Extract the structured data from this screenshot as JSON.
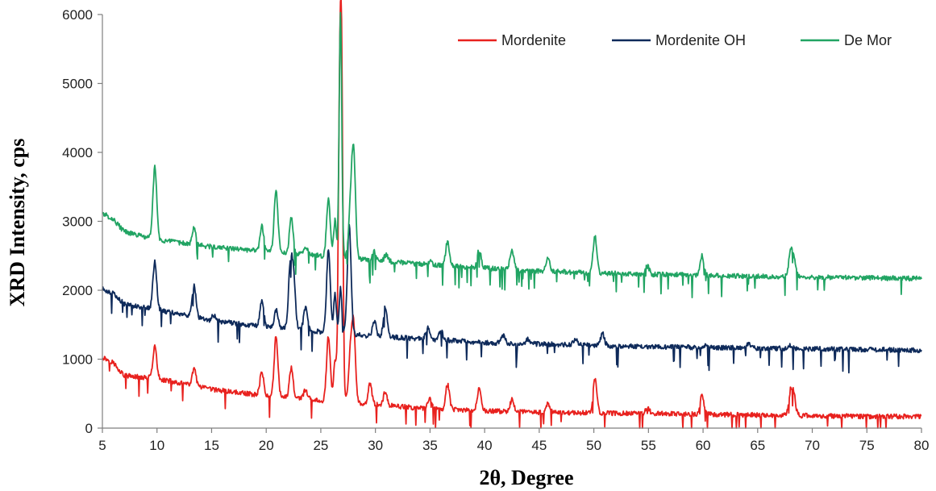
{
  "chart_data": {
    "type": "line",
    "xlabel": "2θ, Degree",
    "ylabel": "XRD Intensity, cps",
    "xlim": [
      5,
      80
    ],
    "ylim": [
      0,
      6000
    ],
    "xticks": [
      5,
      10,
      15,
      20,
      25,
      30,
      35,
      40,
      45,
      50,
      55,
      60,
      65,
      70,
      75,
      80
    ],
    "yticks": [
      0,
      1000,
      2000,
      3000,
      4000,
      5000,
      6000
    ],
    "grid": false,
    "legend_position": "top-right",
    "series": [
      {
        "name": "Mordenite",
        "color": "#e8211e",
        "baseline": [
          [
            5,
            1030
          ],
          [
            6,
            950
          ],
          [
            7,
            760
          ],
          [
            10,
            720
          ],
          [
            15,
            560
          ],
          [
            20,
            470
          ],
          [
            25,
            400
          ],
          [
            30,
            340
          ],
          [
            35,
            280
          ],
          [
            40,
            250
          ],
          [
            45,
            230
          ],
          [
            50,
            220
          ],
          [
            55,
            210
          ],
          [
            60,
            200
          ],
          [
            65,
            190
          ],
          [
            70,
            180
          ],
          [
            75,
            170
          ],
          [
            80,
            170
          ]
        ],
        "peaks": [
          [
            9.8,
            1180
          ],
          [
            13.4,
            860
          ],
          [
            15.2,
            560
          ],
          [
            19.6,
            820
          ],
          [
            20.9,
            1330
          ],
          [
            22.3,
            870
          ],
          [
            23.6,
            560
          ],
          [
            25.7,
            1330
          ],
          [
            26.3,
            1000
          ],
          [
            26.7,
            3900
          ],
          [
            26.9,
            5050
          ],
          [
            27.7,
            1000
          ],
          [
            28.0,
            1440
          ],
          [
            29.5,
            650
          ],
          [
            30.9,
            520
          ],
          [
            35.0,
            440
          ],
          [
            36.6,
            640
          ],
          [
            39.5,
            580
          ],
          [
            42.5,
            410
          ],
          [
            45.8,
            350
          ],
          [
            50.1,
            720
          ],
          [
            54.9,
            310
          ],
          [
            59.9,
            470
          ],
          [
            68.0,
            500
          ],
          [
            68.3,
            470
          ]
        ]
      },
      {
        "name": "Mordenite OH",
        "color": "#0e2a5a",
        "baseline": [
          [
            5,
            2020
          ],
          [
            6,
            1950
          ],
          [
            7,
            1800
          ],
          [
            10,
            1720
          ],
          [
            15,
            1560
          ],
          [
            20,
            1470
          ],
          [
            25,
            1400
          ],
          [
            30,
            1330
          ],
          [
            35,
            1290
          ],
          [
            40,
            1240
          ],
          [
            45,
            1220
          ],
          [
            50,
            1200
          ],
          [
            55,
            1180
          ],
          [
            60,
            1170
          ],
          [
            65,
            1160
          ],
          [
            70,
            1150
          ],
          [
            75,
            1140
          ],
          [
            80,
            1130
          ]
        ],
        "peaks": [
          [
            9.8,
            2420
          ],
          [
            13.4,
            2060
          ],
          [
            15.2,
            1640
          ],
          [
            19.6,
            1860
          ],
          [
            20.9,
            1710
          ],
          [
            22.2,
            2290
          ],
          [
            22.5,
            2180
          ],
          [
            23.6,
            1760
          ],
          [
            25.7,
            2580
          ],
          [
            26.3,
            1960
          ],
          [
            26.8,
            2020
          ],
          [
            27.6,
            2930
          ],
          [
            29.9,
            1560
          ],
          [
            30.9,
            1760
          ],
          [
            34.8,
            1470
          ],
          [
            36.0,
            1410
          ],
          [
            41.7,
            1340
          ],
          [
            44.0,
            1290
          ],
          [
            48.3,
            1300
          ],
          [
            50.8,
            1370
          ],
          [
            60.3,
            1220
          ],
          [
            64.2,
            1230
          ],
          [
            68.0,
            1200
          ]
        ]
      },
      {
        "name": "De Mor",
        "color": "#21a463",
        "baseline": [
          [
            5,
            3120
          ],
          [
            6,
            3030
          ],
          [
            7,
            2850
          ],
          [
            10,
            2730
          ],
          [
            15,
            2630
          ],
          [
            20,
            2560
          ],
          [
            25,
            2500
          ],
          [
            30,
            2430
          ],
          [
            35,
            2370
          ],
          [
            40,
            2320
          ],
          [
            45,
            2280
          ],
          [
            50,
            2250
          ],
          [
            55,
            2230
          ],
          [
            60,
            2220
          ],
          [
            65,
            2200
          ],
          [
            70,
            2190
          ],
          [
            75,
            2180
          ],
          [
            80,
            2170
          ]
        ],
        "peaks": [
          [
            9.8,
            3790
          ],
          [
            13.4,
            2920
          ],
          [
            19.6,
            2930
          ],
          [
            20.9,
            3460
          ],
          [
            22.3,
            3050
          ],
          [
            23.6,
            2640
          ],
          [
            25.7,
            3310
          ],
          [
            26.3,
            3010
          ],
          [
            26.8,
            6000
          ],
          [
            27.7,
            3080
          ],
          [
            28.0,
            4000
          ],
          [
            29.9,
            2560
          ],
          [
            31.0,
            2520
          ],
          [
            35.0,
            2420
          ],
          [
            36.6,
            2710
          ],
          [
            39.5,
            2590
          ],
          [
            42.5,
            2580
          ],
          [
            45.8,
            2460
          ],
          [
            50.1,
            2780
          ],
          [
            54.9,
            2350
          ],
          [
            59.9,
            2500
          ],
          [
            68.0,
            2520
          ],
          [
            68.3,
            2480
          ]
        ]
      }
    ]
  }
}
